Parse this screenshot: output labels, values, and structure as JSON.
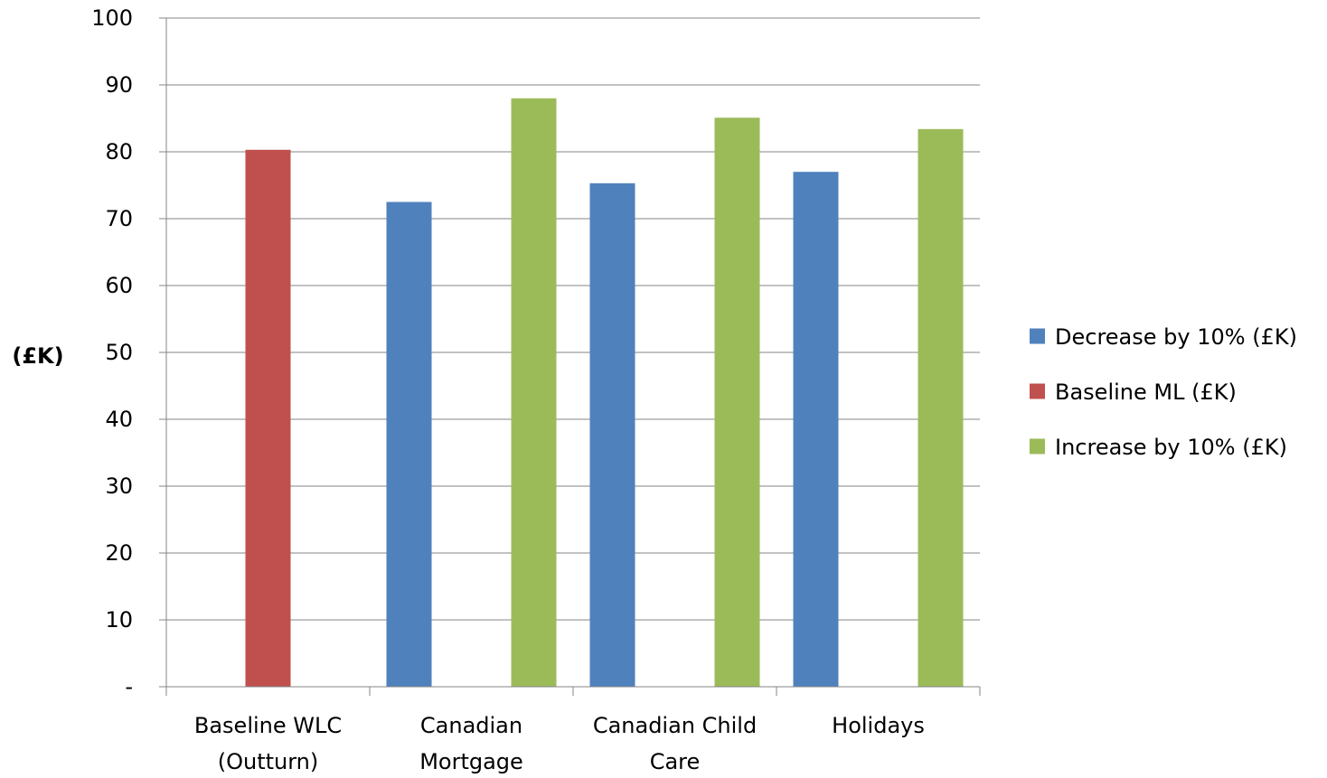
{
  "chart_data": {
    "type": "bar",
    "categories": [
      [
        "Baseline WLC",
        "(Outturn)"
      ],
      [
        "Canadian",
        "Mortgage"
      ],
      [
        "Canadian Child",
        "Care"
      ],
      [
        "Holidays"
      ]
    ],
    "series": [
      {
        "name": "Decrease by 10% (£K)",
        "color": "#4F81BD",
        "values": [
          null,
          72.5,
          75.3,
          77.0
        ]
      },
      {
        "name": "Baseline ML (£K)",
        "color": "#C0504D",
        "values": [
          80.3,
          null,
          null,
          null
        ]
      },
      {
        "name": "Increase by 10% (£K)",
        "color": "#9BBB59",
        "values": [
          null,
          88.0,
          85.1,
          83.4
        ]
      }
    ],
    "title": "",
    "xlabel": "",
    "ylabel": "(£K)",
    "ylim": [
      0,
      100
    ],
    "yticks": [
      0,
      10,
      20,
      30,
      40,
      50,
      60,
      70,
      80,
      90,
      100
    ],
    "ytick_labels": [
      "-",
      "10",
      "20",
      "30",
      "40",
      "50",
      "60",
      "70",
      "80",
      "90",
      "100"
    ],
    "grid": true,
    "legend_position": "right"
  }
}
